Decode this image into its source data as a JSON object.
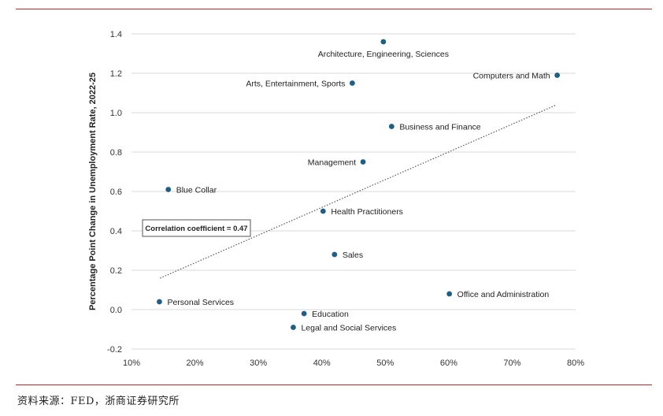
{
  "chart_data": {
    "type": "scatter",
    "ylabel": "Percentage Point Change in Unemployment Rate, 2022-25",
    "xlim": [
      0.1,
      0.8
    ],
    "ylim": [
      -0.2,
      1.4
    ],
    "xticks": [
      "10%",
      "20%",
      "30%",
      "40%",
      "50%",
      "60%",
      "70%",
      "80%"
    ],
    "yticks": [
      "-0.2",
      "0.0",
      "0.2",
      "0.4",
      "0.6",
      "0.8",
      "1.0",
      "1.2",
      "1.4"
    ],
    "grid": "horizontal",
    "marker_color": "#1f5f86",
    "points": [
      {
        "label": "Architecture, Engineering, Sciences",
        "x": 0.497,
        "y": 1.36,
        "label_pos": "below"
      },
      {
        "label": "Computers and Math",
        "x": 0.771,
        "y": 1.19,
        "label_pos": "left"
      },
      {
        "label": "Arts, Entertainment, Sports",
        "x": 0.448,
        "y": 1.15,
        "label_pos": "left"
      },
      {
        "label": "Business and Finance",
        "x": 0.51,
        "y": 0.93,
        "label_pos": "right"
      },
      {
        "label": "Management",
        "x": 0.465,
        "y": 0.75,
        "label_pos": "left"
      },
      {
        "label": "Blue Collar",
        "x": 0.158,
        "y": 0.61,
        "label_pos": "right"
      },
      {
        "label": "Health Practitioners",
        "x": 0.402,
        "y": 0.5,
        "label_pos": "right"
      },
      {
        "label": "Sales",
        "x": 0.42,
        "y": 0.28,
        "label_pos": "right"
      },
      {
        "label": "Office and Administration",
        "x": 0.601,
        "y": 0.08,
        "label_pos": "right"
      },
      {
        "label": "Personal Services",
        "x": 0.144,
        "y": 0.04,
        "label_pos": "right"
      },
      {
        "label": "Education",
        "x": 0.372,
        "y": -0.02,
        "label_pos": "right"
      },
      {
        "label": "Legal and Social Services",
        "x": 0.355,
        "y": -0.09,
        "label_pos": "right"
      }
    ],
    "trendline": {
      "x": [
        0.145,
        0.77
      ],
      "y": [
        0.16,
        1.04
      ],
      "style": "dotted"
    },
    "annotation": "Correlation coefficient = 0.47"
  },
  "source": "资料来源：FED，浙商证券研究所"
}
